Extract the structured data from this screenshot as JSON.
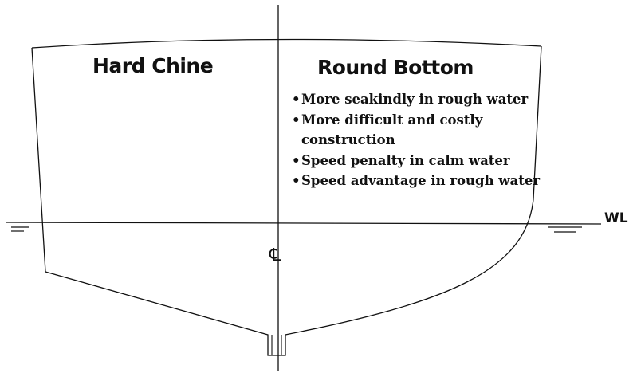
{
  "headings": {
    "left": "Hard Chine",
    "right": "Round Bottom"
  },
  "round_bottom_points": [
    "More seakindly in rough water",
    "More difficult and costly",
    "construction",
    "Speed penalty in calm water",
    "Speed advantage in rough water"
  ],
  "labels": {
    "waterline": "WL",
    "centerline": "℄"
  },
  "colors": {
    "line": "#111111",
    "background": "#ffffff"
  }
}
